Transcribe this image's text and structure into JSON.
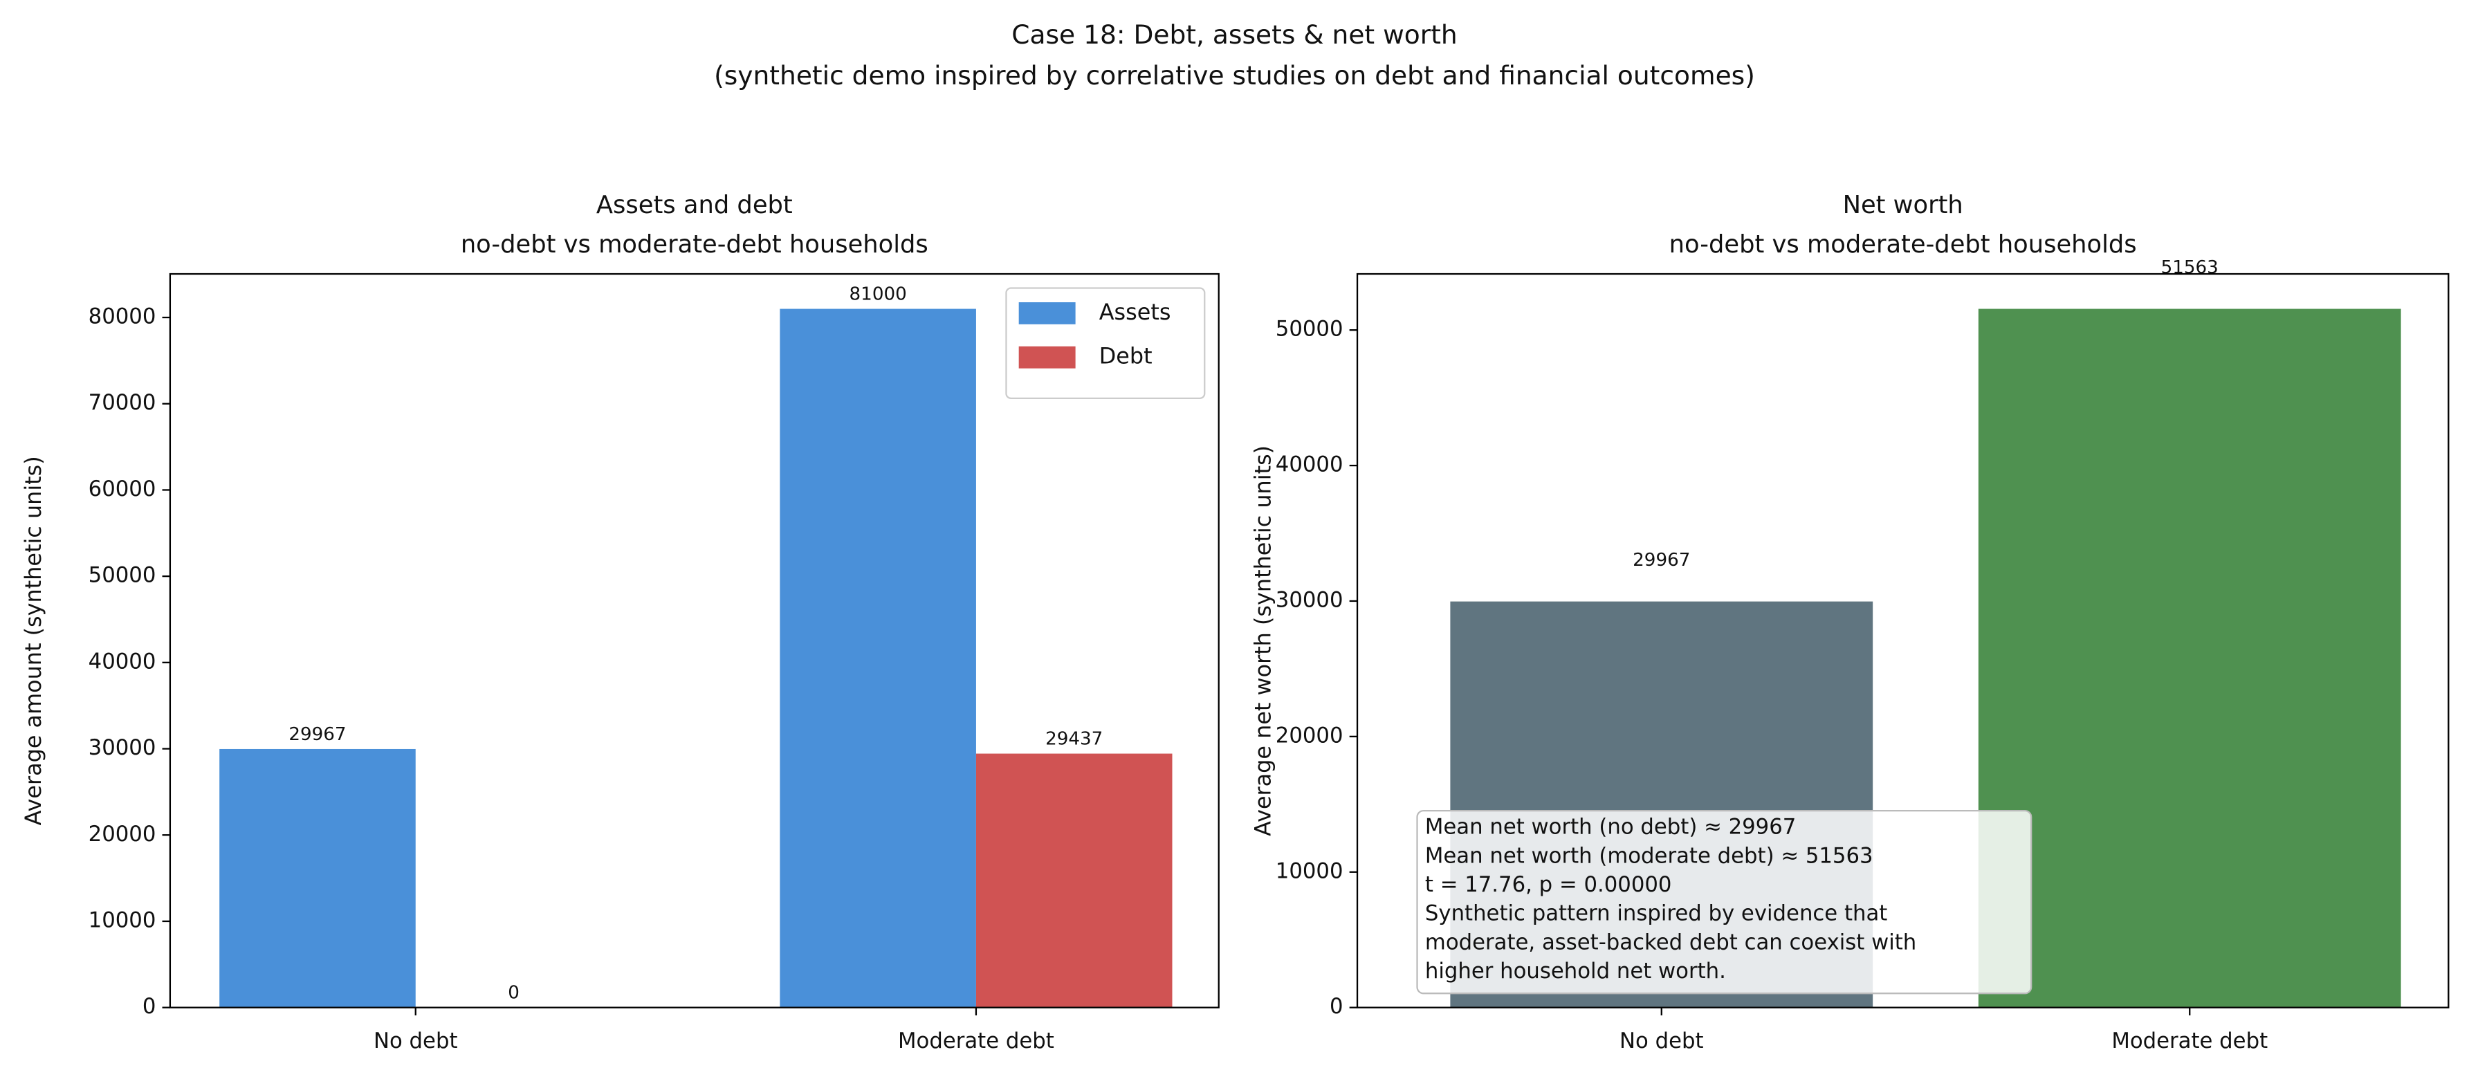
{
  "title": "Case 18: Debt, assets & net worth",
  "subtitle": "(synthetic demo inspired by correlative studies on debt and financial outcomes)",
  "chart_data": [
    {
      "type": "grouped-bar",
      "title": "Assets and debt",
      "subtitle": "no-debt vs moderate-debt households",
      "ylabel": "Average amount (synthetic units)",
      "categories": [
        "No debt",
        "Moderate debt"
      ],
      "series": [
        {
          "name": "Assets",
          "color": "#4a90d9",
          "values": [
            29967,
            81000
          ]
        },
        {
          "name": "Debt",
          "color": "#d05353",
          "values": [
            0,
            29437
          ]
        }
      ],
      "ylim": [
        0,
        85050
      ],
      "yticks": [
        0,
        10000,
        20000,
        30000,
        40000,
        50000,
        60000,
        70000,
        80000
      ],
      "legend": "upper right",
      "value_labels_shown": true
    },
    {
      "type": "bar",
      "title": "Net worth",
      "subtitle": "no-debt vs moderate-debt households",
      "ylabel": "Average net worth (synthetic units)",
      "categories": [
        "No debt",
        "Moderate debt"
      ],
      "values": [
        29967,
        51563
      ],
      "colors": [
        "#607580",
        "#4f9150"
      ],
      "ylim": [
        0,
        54141
      ],
      "yticks": [
        0,
        10000,
        20000,
        30000,
        40000,
        50000
      ],
      "value_labels_shown": true,
      "annotation": [
        "Mean net worth (no debt) ≈ 29967",
        "Mean net worth (moderate debt) ≈ 51563",
        "t = 17.76, p = 0.00000",
        "Synthetic pattern inspired by evidence that",
        "moderate, asset-backed debt can coexist with",
        "higher household net worth."
      ]
    }
  ]
}
